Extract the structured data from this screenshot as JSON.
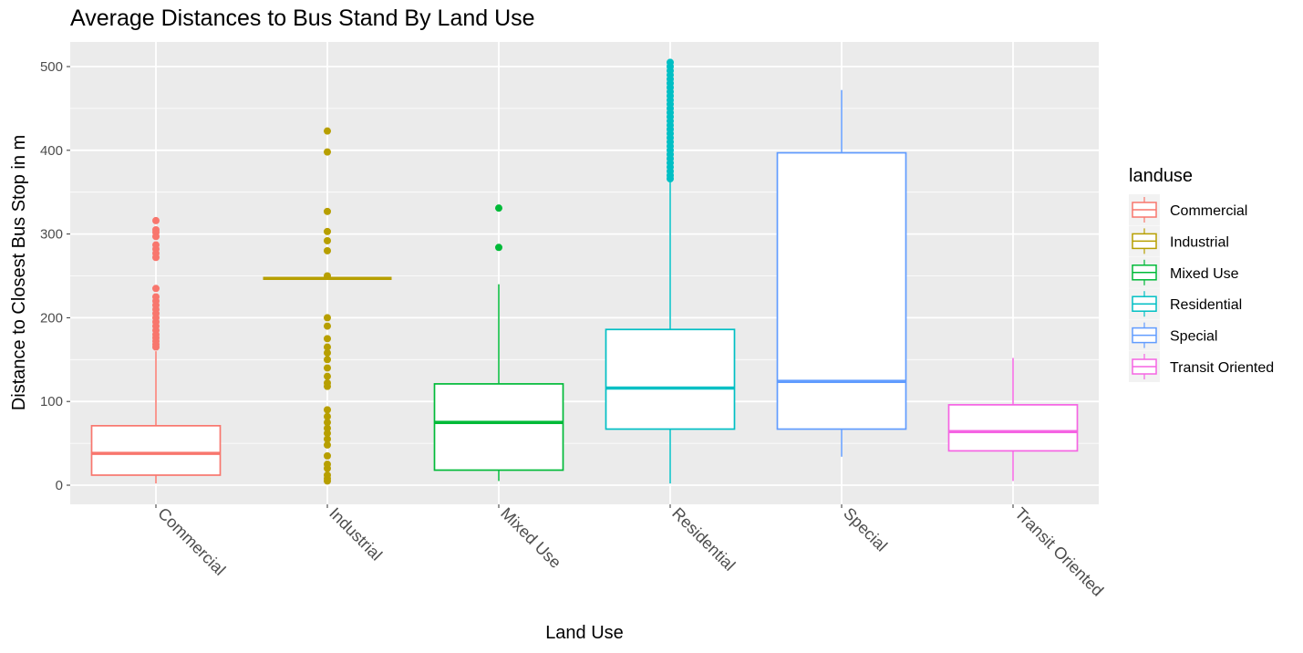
{
  "chart_data": {
    "type": "boxplot",
    "title": "Average Distances to Bus Stand By Land Use",
    "xlabel": "Land Use",
    "ylabel": "Distance to Closest Bus Stop in m",
    "ylim": [
      -22,
      520
    ],
    "yticks": [
      0,
      100,
      200,
      300,
      400,
      500
    ],
    "grid": true,
    "legend": {
      "title": "landuse",
      "placement": "right"
    },
    "categories": [
      "Commercial",
      "Industrial",
      "Mixed Use",
      "Residential",
      "Special",
      "Transit Oriented"
    ],
    "colors": [
      "#F8766D",
      "#B79F00",
      "#00BA38",
      "#00BFC4",
      "#619CFF",
      "#F564E3"
    ],
    "boxes": [
      {
        "name": "Commercial",
        "whisker_low": 2,
        "q1": 12,
        "median": 38,
        "q3": 71,
        "whisker_high": 160,
        "outliers": [
          165,
          168,
          172,
          176,
          180,
          185,
          190,
          195,
          200,
          205,
          210,
          215,
          220,
          225,
          235,
          272,
          277,
          282,
          287,
          297,
          302,
          305,
          316
        ]
      },
      {
        "name": "Industrial",
        "whisker_low": 247,
        "q1": 247,
        "median": 247,
        "q3": 247,
        "whisker_high": 247,
        "outliers": [
          5,
          8,
          12,
          20,
          25,
          35,
          48,
          55,
          62,
          68,
          75,
          82,
          90,
          118,
          122,
          130,
          140,
          150,
          158,
          165,
          175,
          190,
          200,
          250,
          280,
          292,
          303,
          327,
          398,
          423
        ]
      },
      {
        "name": "Mixed Use",
        "whisker_low": 5,
        "q1": 18,
        "median": 75,
        "q3": 121,
        "whisker_high": 240,
        "outliers": [
          284,
          331
        ]
      },
      {
        "name": "Residential",
        "whisker_low": 2,
        "q1": 67,
        "median": 116,
        "q3": 186,
        "whisker_high": 365,
        "outliers": [
          366,
          370,
          375,
          380,
          385,
          390,
          395,
          400,
          405,
          410,
          415,
          420,
          425,
          430,
          435,
          440,
          445,
          450,
          455,
          460,
          465,
          470,
          475,
          480,
          485,
          490,
          495,
          500,
          505
        ]
      },
      {
        "name": "Special",
        "whisker_low": 34,
        "q1": 67,
        "median": 124,
        "q3": 397,
        "whisker_high": 472,
        "outliers": []
      },
      {
        "name": "Transit Oriented",
        "whisker_low": 5,
        "q1": 41,
        "median": 64,
        "q3": 96,
        "whisker_high": 152,
        "outliers": []
      }
    ]
  }
}
